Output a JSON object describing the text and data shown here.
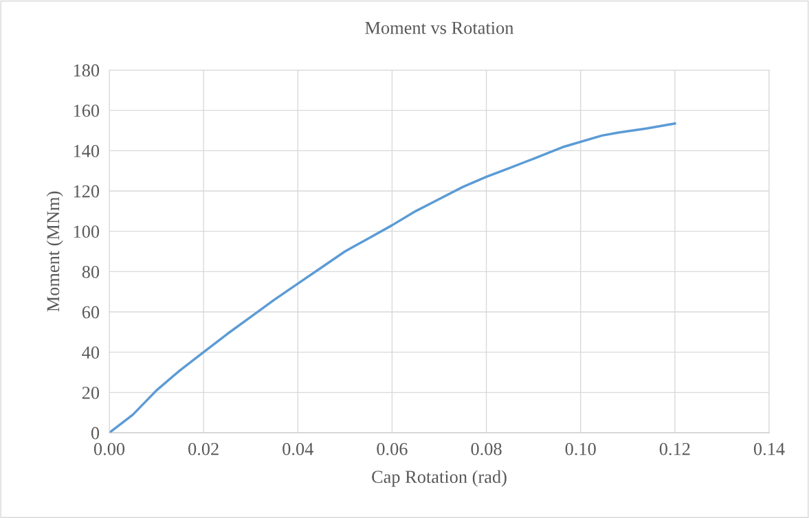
{
  "chart_data": {
    "type": "line",
    "title": "Moment vs Rotation",
    "xlabel": "Cap Rotation (rad)",
    "ylabel": "Moment (MNm)",
    "series": [
      {
        "color": "#5b9bd5",
        "x": [
          0,
          0.005,
          0.01,
          0.015,
          0.02,
          0.025,
          0.03,
          0.035,
          0.04,
          0.045,
          0.05,
          0.055,
          0.06,
          0.065,
          0.07,
          0.075,
          0.08,
          0.085,
          0.09,
          0.0965,
          0.1045,
          0.108,
          0.114,
          0.12
        ],
        "values": [
          0,
          9,
          21,
          31,
          40,
          49,
          57.5,
          66,
          74,
          82,
          90,
          96.5,
          103,
          110,
          116,
          122,
          127,
          131.5,
          136,
          142,
          147.5,
          149,
          151,
          153.5
        ]
      }
    ],
    "xlim": [
      0,
      0.14
    ],
    "ylim": [
      0,
      180
    ],
    "xticks": [
      {
        "value": 0,
        "label": "0.00"
      },
      {
        "value": 0.02,
        "label": "0.02"
      },
      {
        "value": 0.04,
        "label": "0.04"
      },
      {
        "value": 0.06,
        "label": "0.06"
      },
      {
        "value": 0.08,
        "label": "0.08"
      },
      {
        "value": 0.1,
        "label": "0.10"
      },
      {
        "value": 0.12,
        "label": "0.12"
      },
      {
        "value": 0.14,
        "label": "0.14"
      }
    ],
    "yticks": [
      0,
      20,
      40,
      60,
      80,
      100,
      120,
      140,
      160,
      180
    ],
    "grid": true,
    "marker": "none",
    "line_style": "solid"
  }
}
